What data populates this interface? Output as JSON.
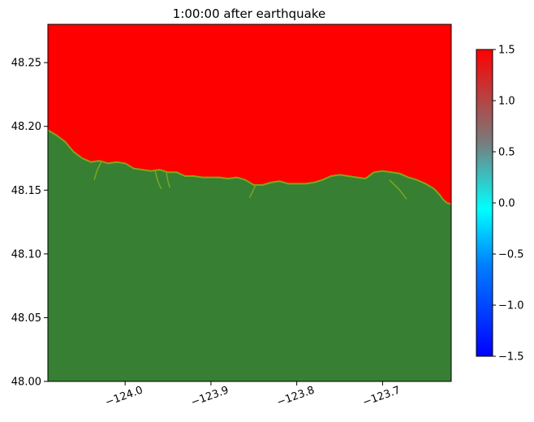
{
  "chart_data": {
    "type": "heatmap",
    "title": "1:00:00 after earthquake",
    "xlabel": "",
    "ylabel": "",
    "xlim": [
      -124.09,
      -123.62
    ],
    "ylim": [
      48.0,
      48.28
    ],
    "x_ticks": [
      -124.0,
      -123.9,
      -123.8,
      -123.7
    ],
    "x_tick_labels": [
      "−124.0",
      "−123.9",
      "−123.8",
      "−123.7"
    ],
    "y_ticks": [
      48.0,
      48.05,
      48.1,
      48.15,
      48.2,
      48.25
    ],
    "y_tick_labels": [
      "48.00",
      "48.05",
      "48.10",
      "48.15",
      "48.20",
      "48.25"
    ],
    "colorbar": {
      "range": [
        -1.5,
        1.5
      ],
      "ticks": [
        1.5,
        1.0,
        0.5,
        0.0,
        -0.5,
        -1.0,
        -1.5
      ],
      "tick_labels": [
        "1.5",
        "1.0",
        "0.5",
        "0.0",
        "−0.5",
        "−1.0",
        "−1.5"
      ],
      "colors": {
        "top": "#ff0000",
        "upper": "#c83232",
        "middle_upper": "#7a7a7a",
        "middle": "#00ffff",
        "lower": "#0080ff",
        "bottom": "#0000ff"
      }
    },
    "colors": {
      "water": "#ff0000",
      "land": "#367f33",
      "shoreline": "#7aa81c"
    },
    "coastline": [
      [
        -124.09,
        48.197
      ],
      [
        -124.08,
        48.193
      ],
      [
        -124.07,
        48.188
      ],
      [
        -124.06,
        48.18
      ],
      [
        -124.05,
        48.175
      ],
      [
        -124.04,
        48.172
      ],
      [
        -124.03,
        48.173
      ],
      [
        -124.02,
        48.171
      ],
      [
        -124.01,
        48.172
      ],
      [
        -124.0,
        48.171
      ],
      [
        -123.99,
        48.167
      ],
      [
        -123.98,
        48.166
      ],
      [
        -123.97,
        48.165
      ],
      [
        -123.96,
        48.166
      ],
      [
        -123.95,
        48.164
      ],
      [
        -123.94,
        48.164
      ],
      [
        -123.93,
        48.161
      ],
      [
        -123.92,
        48.161
      ],
      [
        -123.91,
        48.16
      ],
      [
        -123.9,
        48.16
      ],
      [
        -123.89,
        48.16
      ],
      [
        -123.88,
        48.159
      ],
      [
        -123.87,
        48.16
      ],
      [
        -123.86,
        48.158
      ],
      [
        -123.85,
        48.154
      ],
      [
        -123.84,
        48.154
      ],
      [
        -123.83,
        48.156
      ],
      [
        -123.82,
        48.157
      ],
      [
        -123.81,
        48.155
      ],
      [
        -123.8,
        48.155
      ],
      [
        -123.79,
        48.155
      ],
      [
        -123.78,
        48.156
      ],
      [
        -123.77,
        48.158
      ],
      [
        -123.76,
        48.161
      ],
      [
        -123.75,
        48.162
      ],
      [
        -123.74,
        48.161
      ],
      [
        -123.73,
        48.16
      ],
      [
        -123.72,
        48.159
      ],
      [
        -123.71,
        48.164
      ],
      [
        -123.7,
        48.165
      ],
      [
        -123.69,
        48.164
      ],
      [
        -123.68,
        48.163
      ],
      [
        -123.67,
        48.16
      ],
      [
        -123.66,
        48.158
      ],
      [
        -123.65,
        48.155
      ],
      [
        -123.64,
        48.151
      ],
      [
        -123.633,
        48.146
      ],
      [
        -123.63,
        48.143
      ],
      [
        -123.625,
        48.14
      ],
      [
        -123.62,
        48.139
      ]
    ],
    "inlets": [
      [
        [
          -124.028,
          48.172
        ],
        [
          -124.033,
          48.165
        ],
        [
          -124.036,
          48.158
        ]
      ],
      [
        [
          -123.965,
          48.165
        ],
        [
          -123.962,
          48.157
        ],
        [
          -123.958,
          48.151
        ]
      ],
      [
        [
          -123.952,
          48.164
        ],
        [
          -123.95,
          48.157
        ],
        [
          -123.948,
          48.152
        ]
      ],
      [
        [
          -123.848,
          48.154
        ],
        [
          -123.852,
          48.148
        ],
        [
          -123.855,
          48.144
        ]
      ],
      [
        [
          -123.692,
          48.158
        ],
        [
          -123.68,
          48.15
        ],
        [
          -123.672,
          48.143
        ]
      ]
    ]
  }
}
